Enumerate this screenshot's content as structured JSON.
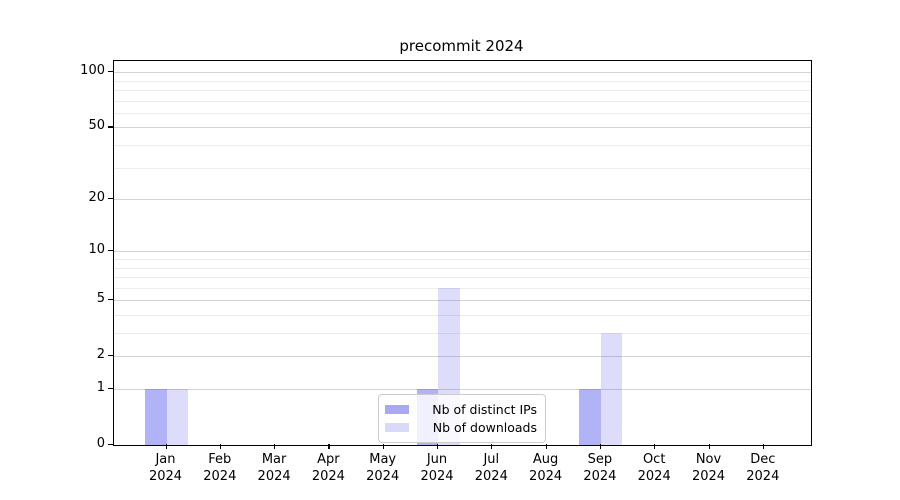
{
  "chart_data": {
    "type": "bar",
    "title": "precommit 2024",
    "categories": [
      "Jan",
      "Feb",
      "Mar",
      "Apr",
      "May",
      "Jun",
      "Jul",
      "Aug",
      "Sep",
      "Oct",
      "Nov",
      "Dec"
    ],
    "year_label": "2024",
    "series": [
      {
        "name": "Nb of distinct IPs",
        "color": "rgba(72,72,235,0.42)",
        "solid_color": "#a9a9f2",
        "values": [
          1,
          0,
          0,
          0,
          0,
          1,
          0,
          0,
          1,
          0,
          0,
          0
        ]
      },
      {
        "name": "Nb of downloads",
        "color": "rgba(72,72,235,0.19)",
        "solid_color": "#d9d9fa",
        "values": [
          1,
          0,
          0,
          0,
          0,
          6,
          0,
          0,
          3,
          0,
          0,
          0
        ]
      }
    ],
    "y_scale": "log10(value+1)",
    "y_ticks": [
      0,
      1,
      2,
      5,
      10,
      20,
      50,
      100
    ],
    "y_major_gridlines": [
      1,
      2,
      5,
      10,
      20,
      50,
      100
    ],
    "y_minor_gridlines": [
      3,
      4,
      6,
      7,
      8,
      9,
      30,
      40,
      60,
      70,
      80,
      90
    ],
    "ylim": [
      0,
      115
    ],
    "xlabel": "",
    "ylabel": "",
    "grid": true,
    "legend_position": "lower center"
  },
  "colors": {
    "bar_dark": "#a9a9f2",
    "bar_light": "#d9d9fa",
    "major_grid": "#d4d4d4",
    "minor_grid": "#ececec",
    "spine": "#000000",
    "legend_border": "#cccccc",
    "background": "#ffffff"
  }
}
